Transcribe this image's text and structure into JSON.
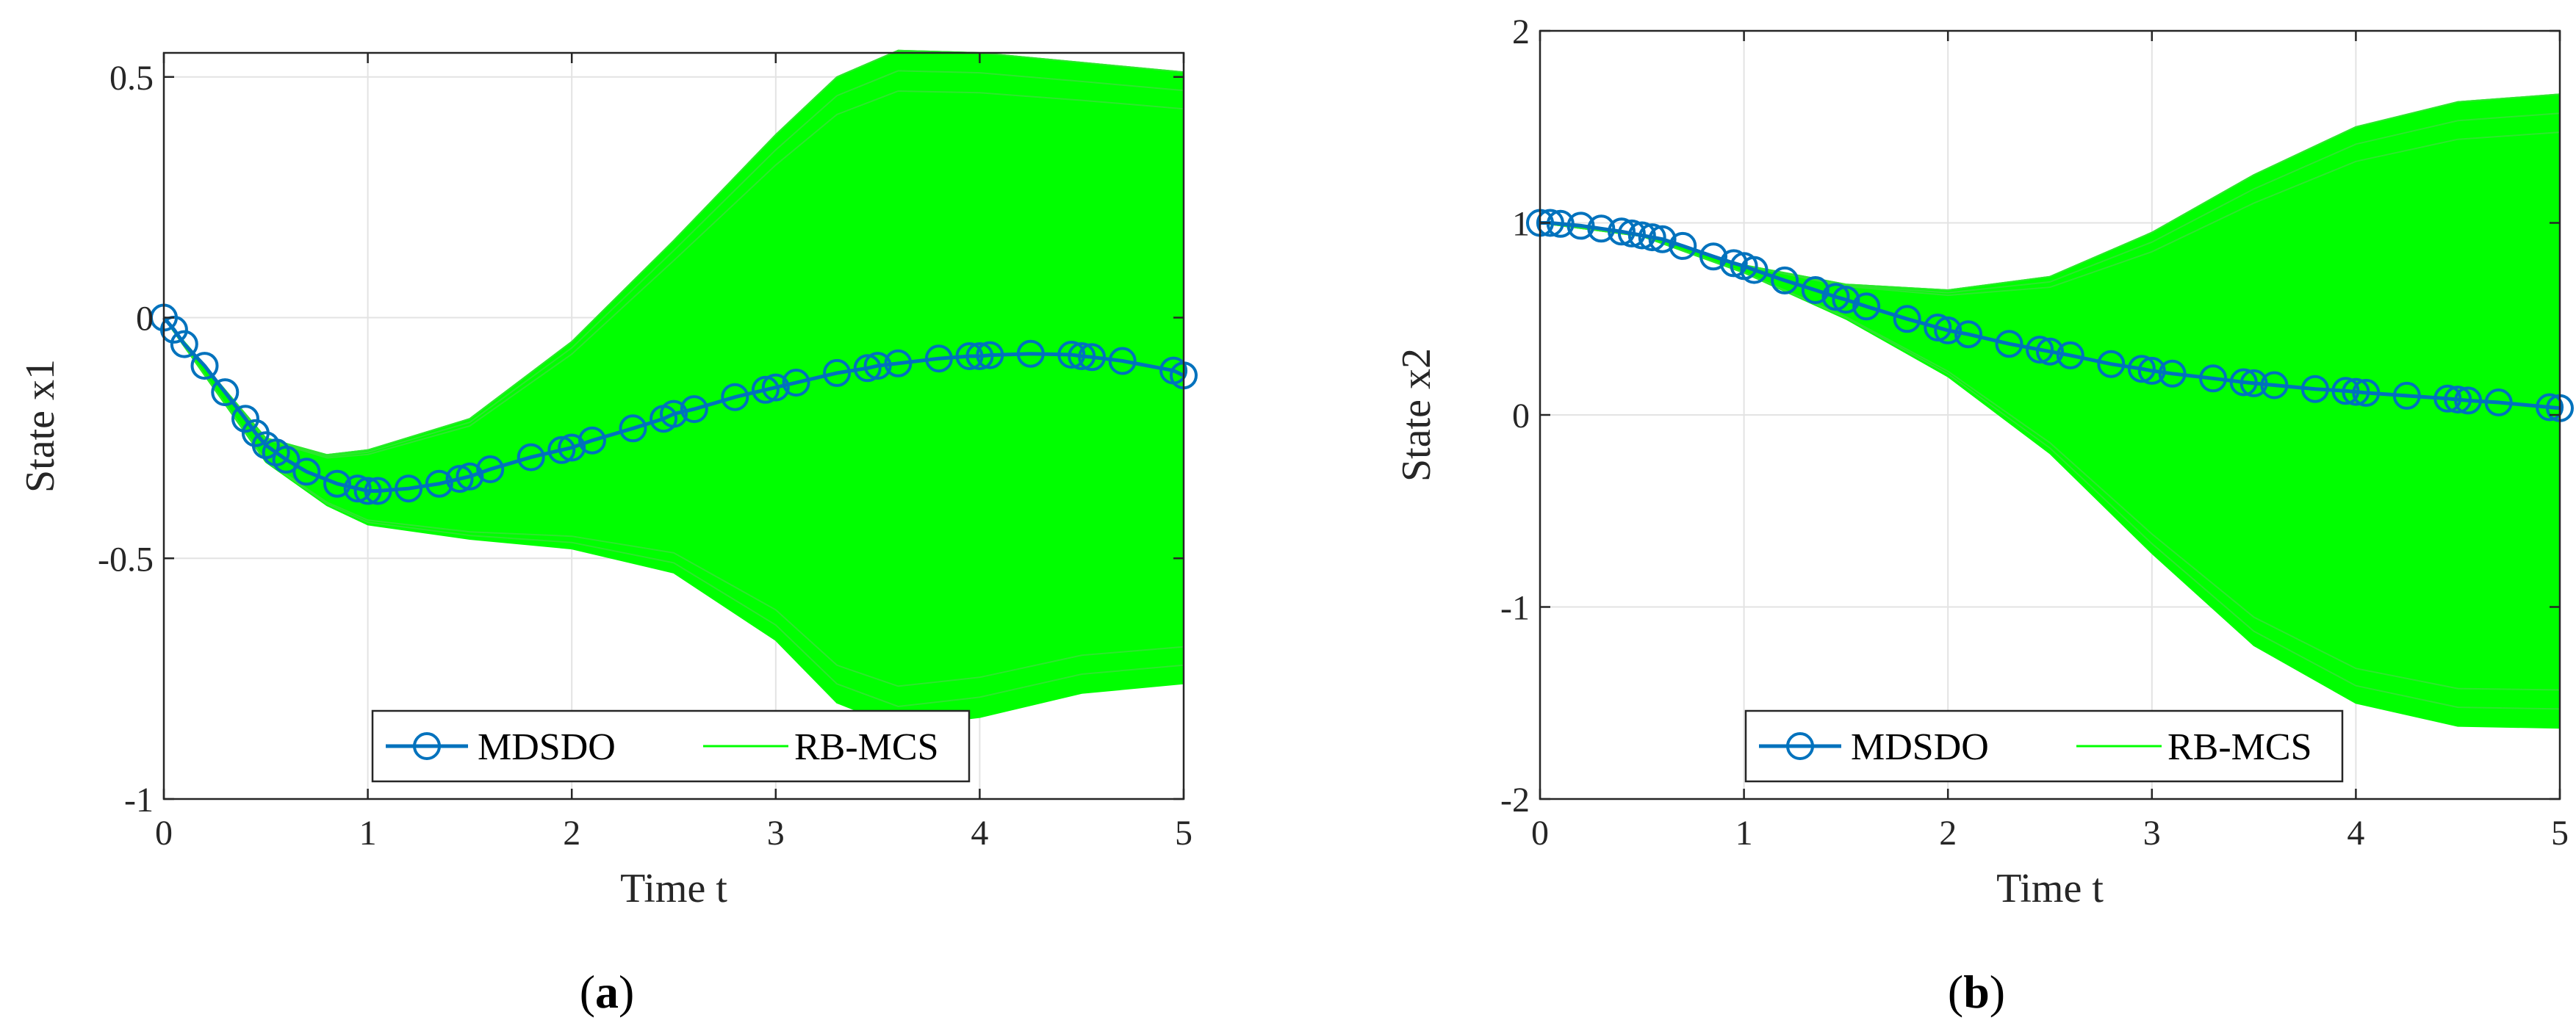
{
  "chart_data": [
    {
      "type": "line",
      "caption": {
        "open": "(",
        "letter": "a",
        "close": ")"
      },
      "xlabel": "Time t",
      "ylabel": "State x1",
      "xlim": [
        0,
        5
      ],
      "ylim": [
        -1,
        0.55
      ],
      "xticks": [
        "0",
        "1",
        "2",
        "3",
        "4",
        "5"
      ],
      "yticks": [
        "-1",
        "-0.5",
        "0",
        "0.5"
      ],
      "grid": true,
      "legend": {
        "placement": "bottom",
        "entries": [
          "MDSDO",
          "RB-MCS"
        ]
      },
      "colors": {
        "mdsdo": "#0072BD",
        "rbmcs": "#00FF00"
      },
      "series": [
        {
          "name": "MDSDO",
          "marker": "circle",
          "x": [
            0,
            0.05,
            0.1,
            0.2,
            0.3,
            0.4,
            0.45,
            0.5,
            0.55,
            0.6,
            0.7,
            0.85,
            0.95,
            1.0,
            1.05,
            1.2,
            1.35,
            1.45,
            1.5,
            1.6,
            1.8,
            1.95,
            2.0,
            2.1,
            2.3,
            2.45,
            2.5,
            2.6,
            2.8,
            2.95,
            3.0,
            3.1,
            3.3,
            3.45,
            3.5,
            3.6,
            3.8,
            3.95,
            4.0,
            4.05,
            4.25,
            4.45,
            4.5,
            4.55,
            4.7,
            4.95,
            5.0
          ],
          "y": [
            0,
            -0.025,
            -0.055,
            -0.1,
            -0.155,
            -0.21,
            -0.24,
            -0.265,
            -0.28,
            -0.295,
            -0.32,
            -0.345,
            -0.355,
            -0.36,
            -0.36,
            -0.355,
            -0.345,
            -0.335,
            -0.33,
            -0.315,
            -0.29,
            -0.275,
            -0.27,
            -0.255,
            -0.23,
            -0.21,
            -0.2,
            -0.19,
            -0.165,
            -0.15,
            -0.145,
            -0.135,
            -0.115,
            -0.105,
            -0.1,
            -0.095,
            -0.085,
            -0.08,
            -0.08,
            -0.078,
            -0.075,
            -0.077,
            -0.08,
            -0.082,
            -0.09,
            -0.11,
            -0.12
          ]
        },
        {
          "name": "RB-MCS",
          "x": [
            0,
            0.5,
            0.8,
            1.0,
            1.5,
            2.0,
            2.5,
            3.0,
            3.3,
            3.6,
            4.0,
            4.5,
            5.0
          ],
          "upper": [
            0,
            -0.25,
            -0.285,
            -0.275,
            -0.21,
            -0.05,
            0.16,
            0.38,
            0.5,
            0.555,
            0.55,
            0.53,
            0.51
          ],
          "lower": [
            0,
            -0.3,
            -0.39,
            -0.43,
            -0.46,
            -0.48,
            -0.53,
            -0.67,
            -0.8,
            -0.85,
            -0.83,
            -0.78,
            -0.76
          ]
        }
      ]
    },
    {
      "type": "line",
      "caption": {
        "open": "(",
        "letter": "b",
        "close": ")"
      },
      "xlabel": "Time t",
      "ylabel": "State x2",
      "xlim": [
        0,
        5
      ],
      "ylim": [
        -2,
        2
      ],
      "xticks": [
        "0",
        "1",
        "2",
        "3",
        "4",
        "5"
      ],
      "yticks": [
        "-2",
        "-1",
        "0",
        "1",
        "2"
      ],
      "grid": true,
      "legend": {
        "placement": "bottom",
        "entries": [
          "MDSDO",
          "RB-MCS"
        ]
      },
      "colors": {
        "mdsdo": "#0072BD",
        "rbmcs": "#00FF00"
      },
      "series": [
        {
          "name": "MDSDO",
          "marker": "circle",
          "x": [
            0,
            0.05,
            0.1,
            0.2,
            0.3,
            0.4,
            0.45,
            0.5,
            0.55,
            0.6,
            0.7,
            0.85,
            0.95,
            1.0,
            1.05,
            1.2,
            1.35,
            1.45,
            1.5,
            1.6,
            1.8,
            1.95,
            2.0,
            2.1,
            2.3,
            2.45,
            2.5,
            2.6,
            2.8,
            2.95,
            3.0,
            3.1,
            3.3,
            3.45,
            3.5,
            3.6,
            3.8,
            3.95,
            4.0,
            4.05,
            4.25,
            4.45,
            4.5,
            4.55,
            4.7,
            4.95,
            5.0
          ],
          "y": [
            1.0,
            1.0,
            0.995,
            0.985,
            0.97,
            0.955,
            0.945,
            0.935,
            0.925,
            0.915,
            0.88,
            0.825,
            0.79,
            0.775,
            0.755,
            0.7,
            0.65,
            0.615,
            0.6,
            0.565,
            0.5,
            0.455,
            0.44,
            0.42,
            0.37,
            0.34,
            0.33,
            0.31,
            0.265,
            0.24,
            0.23,
            0.215,
            0.19,
            0.17,
            0.165,
            0.155,
            0.135,
            0.125,
            0.12,
            0.115,
            0.1,
            0.085,
            0.08,
            0.075,
            0.065,
            0.04,
            0.035
          ]
        },
        {
          "name": "RB-MCS",
          "x": [
            0,
            0.5,
            1.0,
            1.5,
            2.0,
            2.5,
            3.0,
            3.5,
            4.0,
            4.5,
            5.0
          ],
          "upper": [
            1.0,
            0.94,
            0.78,
            0.68,
            0.65,
            0.72,
            0.95,
            1.25,
            1.5,
            1.63,
            1.67
          ],
          "lower": [
            1.0,
            0.93,
            0.74,
            0.5,
            0.2,
            -0.2,
            -0.72,
            -1.2,
            -1.5,
            -1.62,
            -1.63
          ]
        }
      ]
    }
  ]
}
